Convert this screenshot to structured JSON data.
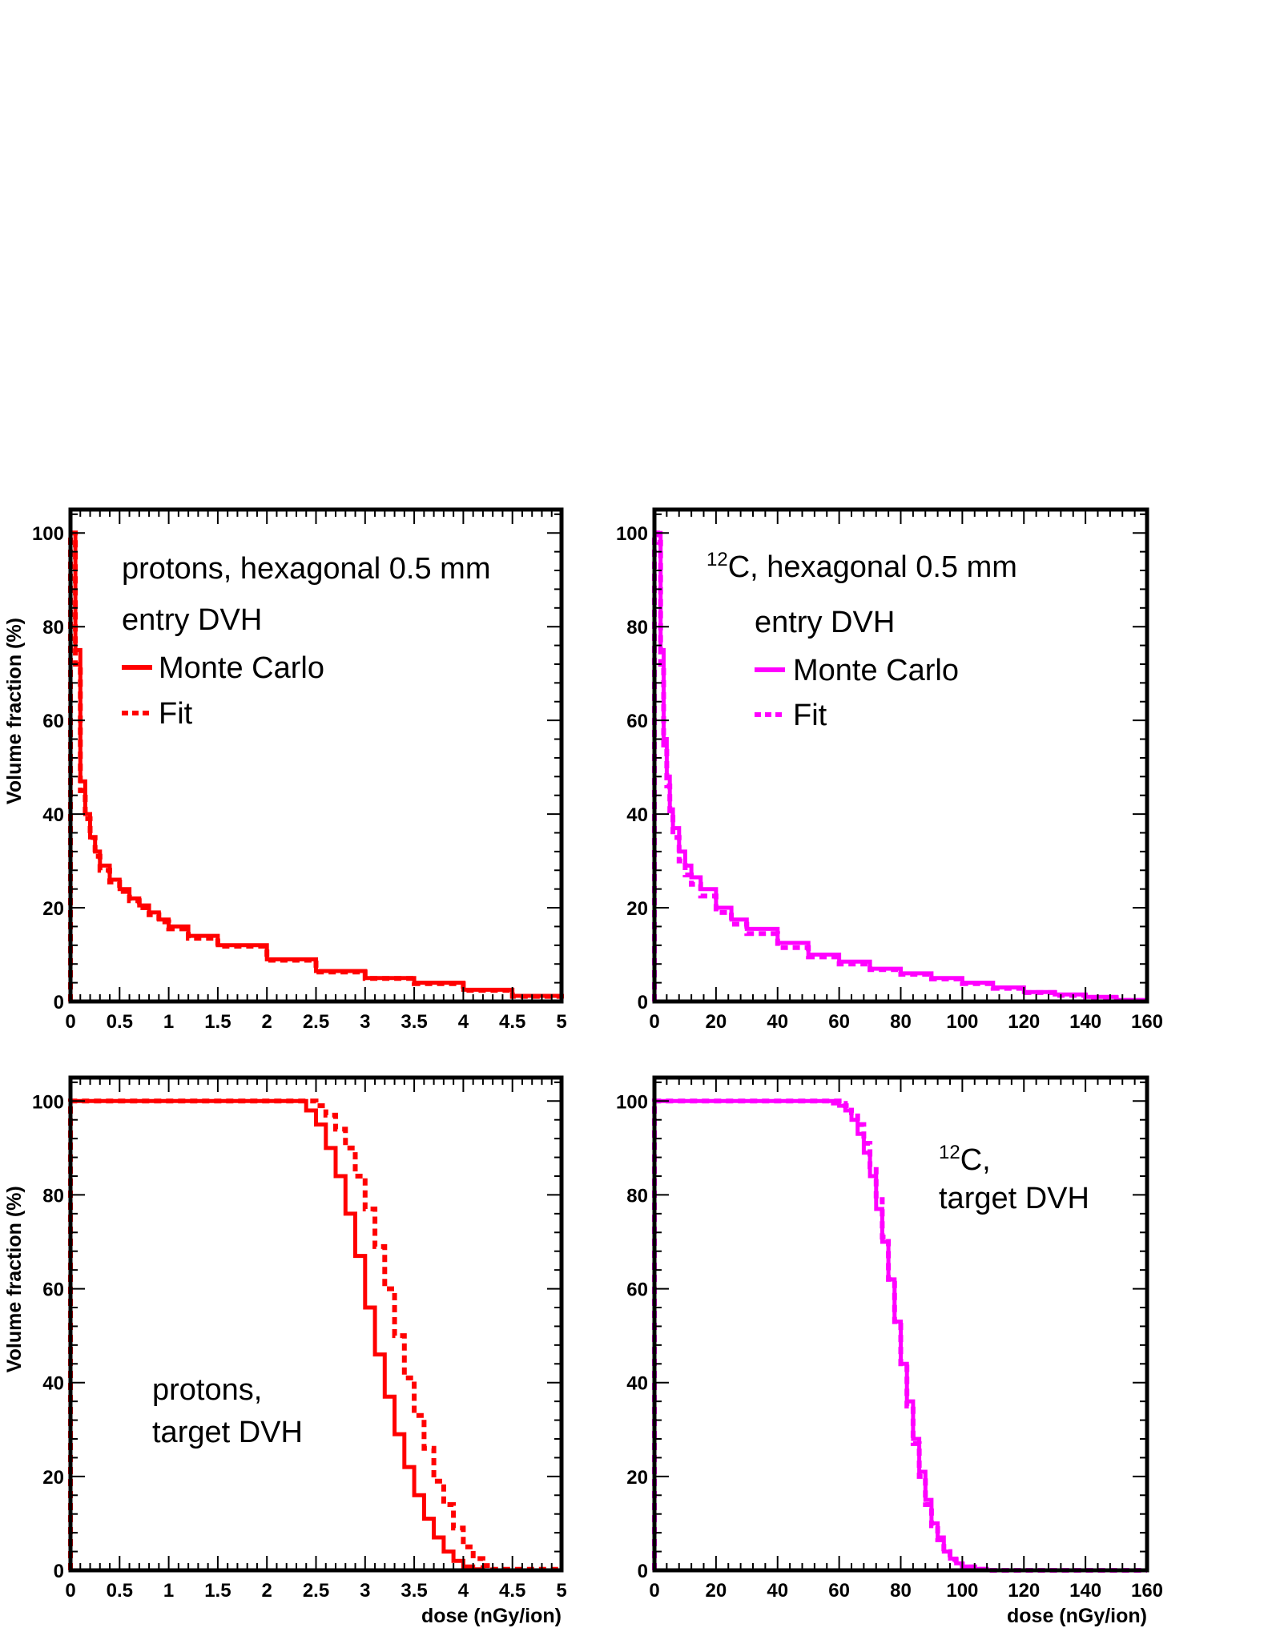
{
  "chart_data": [
    {
      "type": "line",
      "panel": "top-left",
      "annotations": [
        "protons, hexagonal 0.5 mm",
        "entry DVH"
      ],
      "legend": {
        "placement": "top-right",
        "entries": [
          "Monte Carlo",
          "Fit"
        ]
      },
      "color": "#ff0000",
      "xlabel": "",
      "ylabel": "Volume fraction (%)",
      "xlim": [
        0,
        5
      ],
      "ylim": [
        0,
        105
      ],
      "xticks": [
        "0",
        "0.5",
        "1",
        "1.5",
        "2",
        "2.5",
        "3",
        "3.5",
        "4",
        "4.5",
        "5"
      ],
      "yticks": [
        "0",
        "20",
        "40",
        "60",
        "80",
        "100"
      ],
      "series": [
        {
          "name": "Monte Carlo",
          "style": "solid",
          "x": [
            0,
            0.05,
            0.1,
            0.15,
            0.2,
            0.25,
            0.3,
            0.4,
            0.5,
            0.6,
            0.7,
            0.8,
            0.9,
            1.0,
            1.2,
            1.5,
            2.0,
            2.5,
            3.0,
            3.5,
            4.0,
            4.5,
            5.0
          ],
          "y": [
            100,
            75,
            47,
            40,
            35,
            32,
            29,
            26,
            24,
            22,
            20.5,
            19,
            17.5,
            16,
            14,
            12,
            9,
            6.5,
            5,
            4,
            2.5,
            1.2,
            0
          ]
        },
        {
          "name": "Fit",
          "style": "dashed",
          "x": [
            0,
            0.05,
            0.1,
            0.15,
            0.2,
            0.25,
            0.3,
            0.4,
            0.5,
            0.6,
            0.7,
            0.8,
            0.9,
            1.0,
            1.2,
            1.5,
            2.0,
            2.5,
            3.0,
            3.5,
            4.0,
            4.5,
            5.0
          ],
          "y": [
            100,
            72,
            45,
            39,
            35,
            31,
            28,
            25.5,
            23.5,
            21.5,
            20,
            18.5,
            17,
            15.5,
            13.5,
            11.8,
            8.8,
            6.3,
            4.9,
            3.8,
            2.4,
            1.1,
            0
          ]
        }
      ]
    },
    {
      "type": "line",
      "panel": "top-right",
      "annotations": [
        "12",
        "C, hexagonal 0.5 mm",
        "entry DVH"
      ],
      "legend": {
        "placement": "top-right",
        "entries": [
          "Monte Carlo",
          "Fit"
        ]
      },
      "color": "#ff00ff",
      "xlabel": "",
      "ylabel": "",
      "xlim": [
        0,
        160
      ],
      "ylim": [
        0,
        105
      ],
      "xticks": [
        "0",
        "20",
        "40",
        "60",
        "80",
        "100",
        "120",
        "140",
        "160"
      ],
      "yticks": [
        "0",
        "20",
        "40",
        "60",
        "80",
        "100"
      ],
      "series": [
        {
          "name": "Monte Carlo",
          "style": "solid",
          "x": [
            0,
            1,
            2,
            3,
            4,
            5,
            6,
            8,
            10,
            12,
            15,
            20,
            25,
            30,
            40,
            50,
            60,
            70,
            80,
            90,
            100,
            110,
            120,
            130,
            140,
            150,
            160
          ],
          "y": [
            100,
            100,
            75,
            56,
            48,
            41,
            37,
            32,
            29,
            26.5,
            24,
            20,
            17.5,
            15.5,
            12.5,
            10,
            8.5,
            7,
            6,
            5,
            4,
            3,
            2,
            1.5,
            1,
            0.3,
            0
          ]
        },
        {
          "name": "Fit",
          "style": "dashed",
          "x": [
            0,
            1,
            2,
            3,
            4,
            5,
            6,
            8,
            10,
            12,
            15,
            20,
            25,
            30,
            40,
            50,
            60,
            70,
            80,
            90,
            100,
            110,
            120,
            130,
            140,
            150,
            160
          ],
          "y": [
            100,
            98,
            72,
            54,
            46,
            40,
            35,
            30,
            27,
            25,
            22.5,
            19,
            16.5,
            14.5,
            11.5,
            9.5,
            8,
            6.8,
            5.8,
            4.8,
            3.8,
            2.8,
            1.9,
            1.3,
            0.8,
            0.2,
            0
          ]
        }
      ]
    },
    {
      "type": "line",
      "panel": "bottom-left",
      "annotations": [
        "protons,",
        "target DVH"
      ],
      "color": "#ff0000",
      "xlabel": "dose (nGy/ion)",
      "ylabel": "Volume fraction (%)",
      "xlim": [
        0,
        5
      ],
      "ylim": [
        0,
        105
      ],
      "xticks": [
        "0",
        "0.5",
        "1",
        "1.5",
        "2",
        "2.5",
        "3",
        "3.5",
        "4",
        "4.5",
        "5"
      ],
      "yticks": [
        "0",
        "20",
        "40",
        "60",
        "80",
        "100"
      ],
      "series": [
        {
          "name": "Monte Carlo",
          "style": "solid",
          "x": [
            0,
            2.0,
            2.2,
            2.4,
            2.5,
            2.6,
            2.7,
            2.8,
            2.9,
            3.0,
            3.1,
            3.2,
            3.3,
            3.4,
            3.5,
            3.6,
            3.7,
            3.8,
            3.9,
            4.0,
            4.1,
            4.2,
            5.0
          ],
          "y": [
            100,
            100,
            100,
            98,
            95,
            90,
            84,
            76,
            67,
            56,
            46,
            37,
            29,
            22,
            16,
            11,
            7,
            4,
            2,
            0.8,
            0.2,
            0,
            0
          ]
        },
        {
          "name": "Fit",
          "style": "dashed",
          "x": [
            0,
            2.2,
            2.4,
            2.5,
            2.6,
            2.7,
            2.8,
            2.9,
            3.0,
            3.1,
            3.2,
            3.3,
            3.4,
            3.5,
            3.6,
            3.7,
            3.8,
            3.9,
            4.0,
            4.1,
            4.2,
            4.3,
            5.0
          ],
          "y": [
            100,
            100,
            100,
            99,
            97,
            94,
            90,
            84,
            77,
            69,
            60,
            50,
            41,
            33,
            26,
            19,
            14,
            9,
            5,
            2.5,
            1,
            0.2,
            0
          ]
        }
      ]
    },
    {
      "type": "line",
      "panel": "bottom-right",
      "annotations": [
        "12",
        "C,",
        "target DVH"
      ],
      "color": "#ff00ff",
      "xlabel": "dose (nGy/ion)",
      "ylabel": "",
      "xlim": [
        0,
        160
      ],
      "ylim": [
        0,
        105
      ],
      "xticks": [
        "0",
        "20",
        "40",
        "60",
        "80",
        "100",
        "120",
        "140",
        "160"
      ],
      "yticks": [
        "0",
        "20",
        "40",
        "60",
        "80",
        "100"
      ],
      "series": [
        {
          "name": "Monte Carlo",
          "style": "solid",
          "x": [
            0,
            55,
            58,
            60,
            62,
            64,
            66,
            68,
            70,
            72,
            74,
            76,
            78,
            80,
            82,
            84,
            86,
            88,
            90,
            92,
            94,
            96,
            98,
            100,
            104,
            108,
            160
          ],
          "y": [
            100,
            100,
            99.5,
            99,
            98,
            96,
            93,
            89,
            84,
            77,
            70,
            62,
            53,
            44,
            36,
            28,
            21,
            15,
            10,
            7,
            4,
            2.5,
            1.5,
            0.8,
            0.3,
            0,
            0
          ]
        },
        {
          "name": "Fit",
          "style": "dashed",
          "x": [
            0,
            56,
            58,
            60,
            62,
            64,
            66,
            68,
            70,
            72,
            74,
            76,
            78,
            80,
            82,
            84,
            86,
            88,
            90,
            92,
            94,
            96,
            98,
            100,
            104,
            108,
            160
          ],
          "y": [
            100,
            100,
            100,
            99.5,
            99,
            97.5,
            95,
            91,
            86,
            79,
            71,
            62,
            53,
            44,
            35,
            27,
            20,
            14,
            9.5,
            6.5,
            4,
            2.3,
            1.3,
            0.7,
            0.2,
            0,
            0
          ]
        }
      ]
    }
  ]
}
